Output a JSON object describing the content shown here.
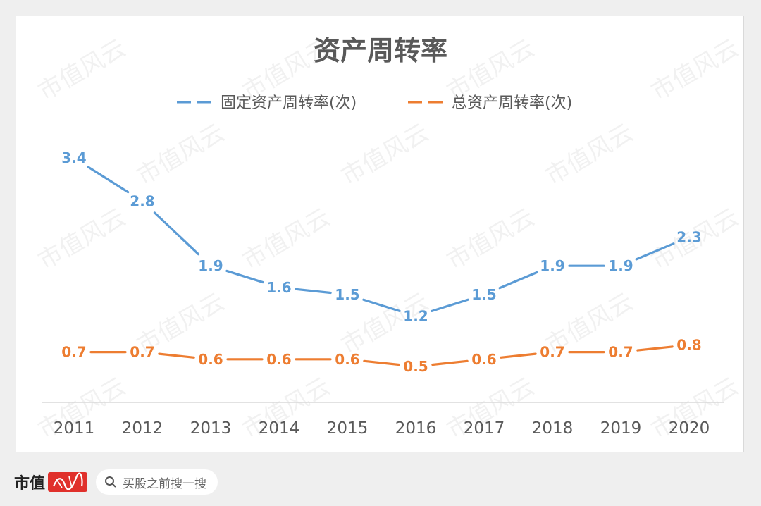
{
  "chart_data": {
    "type": "line",
    "title": "资产周转率",
    "categories": [
      "2011",
      "2012",
      "2013",
      "2014",
      "2015",
      "2016",
      "2017",
      "2018",
      "2019",
      "2020"
    ],
    "series": [
      {
        "name": "固定资产周转率(次)",
        "color": "#5b9bd5",
        "values": [
          3.4,
          2.8,
          1.9,
          1.6,
          1.5,
          1.2,
          1.5,
          1.9,
          1.9,
          2.3
        ],
        "labels": [
          "3.4",
          "2.8",
          "1.9",
          "1.6",
          "1.5",
          "1.2",
          "1.5",
          "1.9",
          "1.9",
          "2.3"
        ]
      },
      {
        "name": "总资产周转率(次)",
        "color": "#ed7d31",
        "values": [
          0.7,
          0.7,
          0.6,
          0.6,
          0.6,
          0.5,
          0.6,
          0.7,
          0.7,
          0.8
        ],
        "labels": [
          "0.7",
          "0.7",
          "0.6",
          "0.6",
          "0.6",
          "0.5",
          "0.6",
          "0.7",
          "0.7",
          "0.8"
        ]
      }
    ],
    "legend": "top",
    "grid": false
  },
  "watermark": "市值风云",
  "footer": {
    "brand": "市值",
    "search_hint": "买股之前搜一搜"
  }
}
